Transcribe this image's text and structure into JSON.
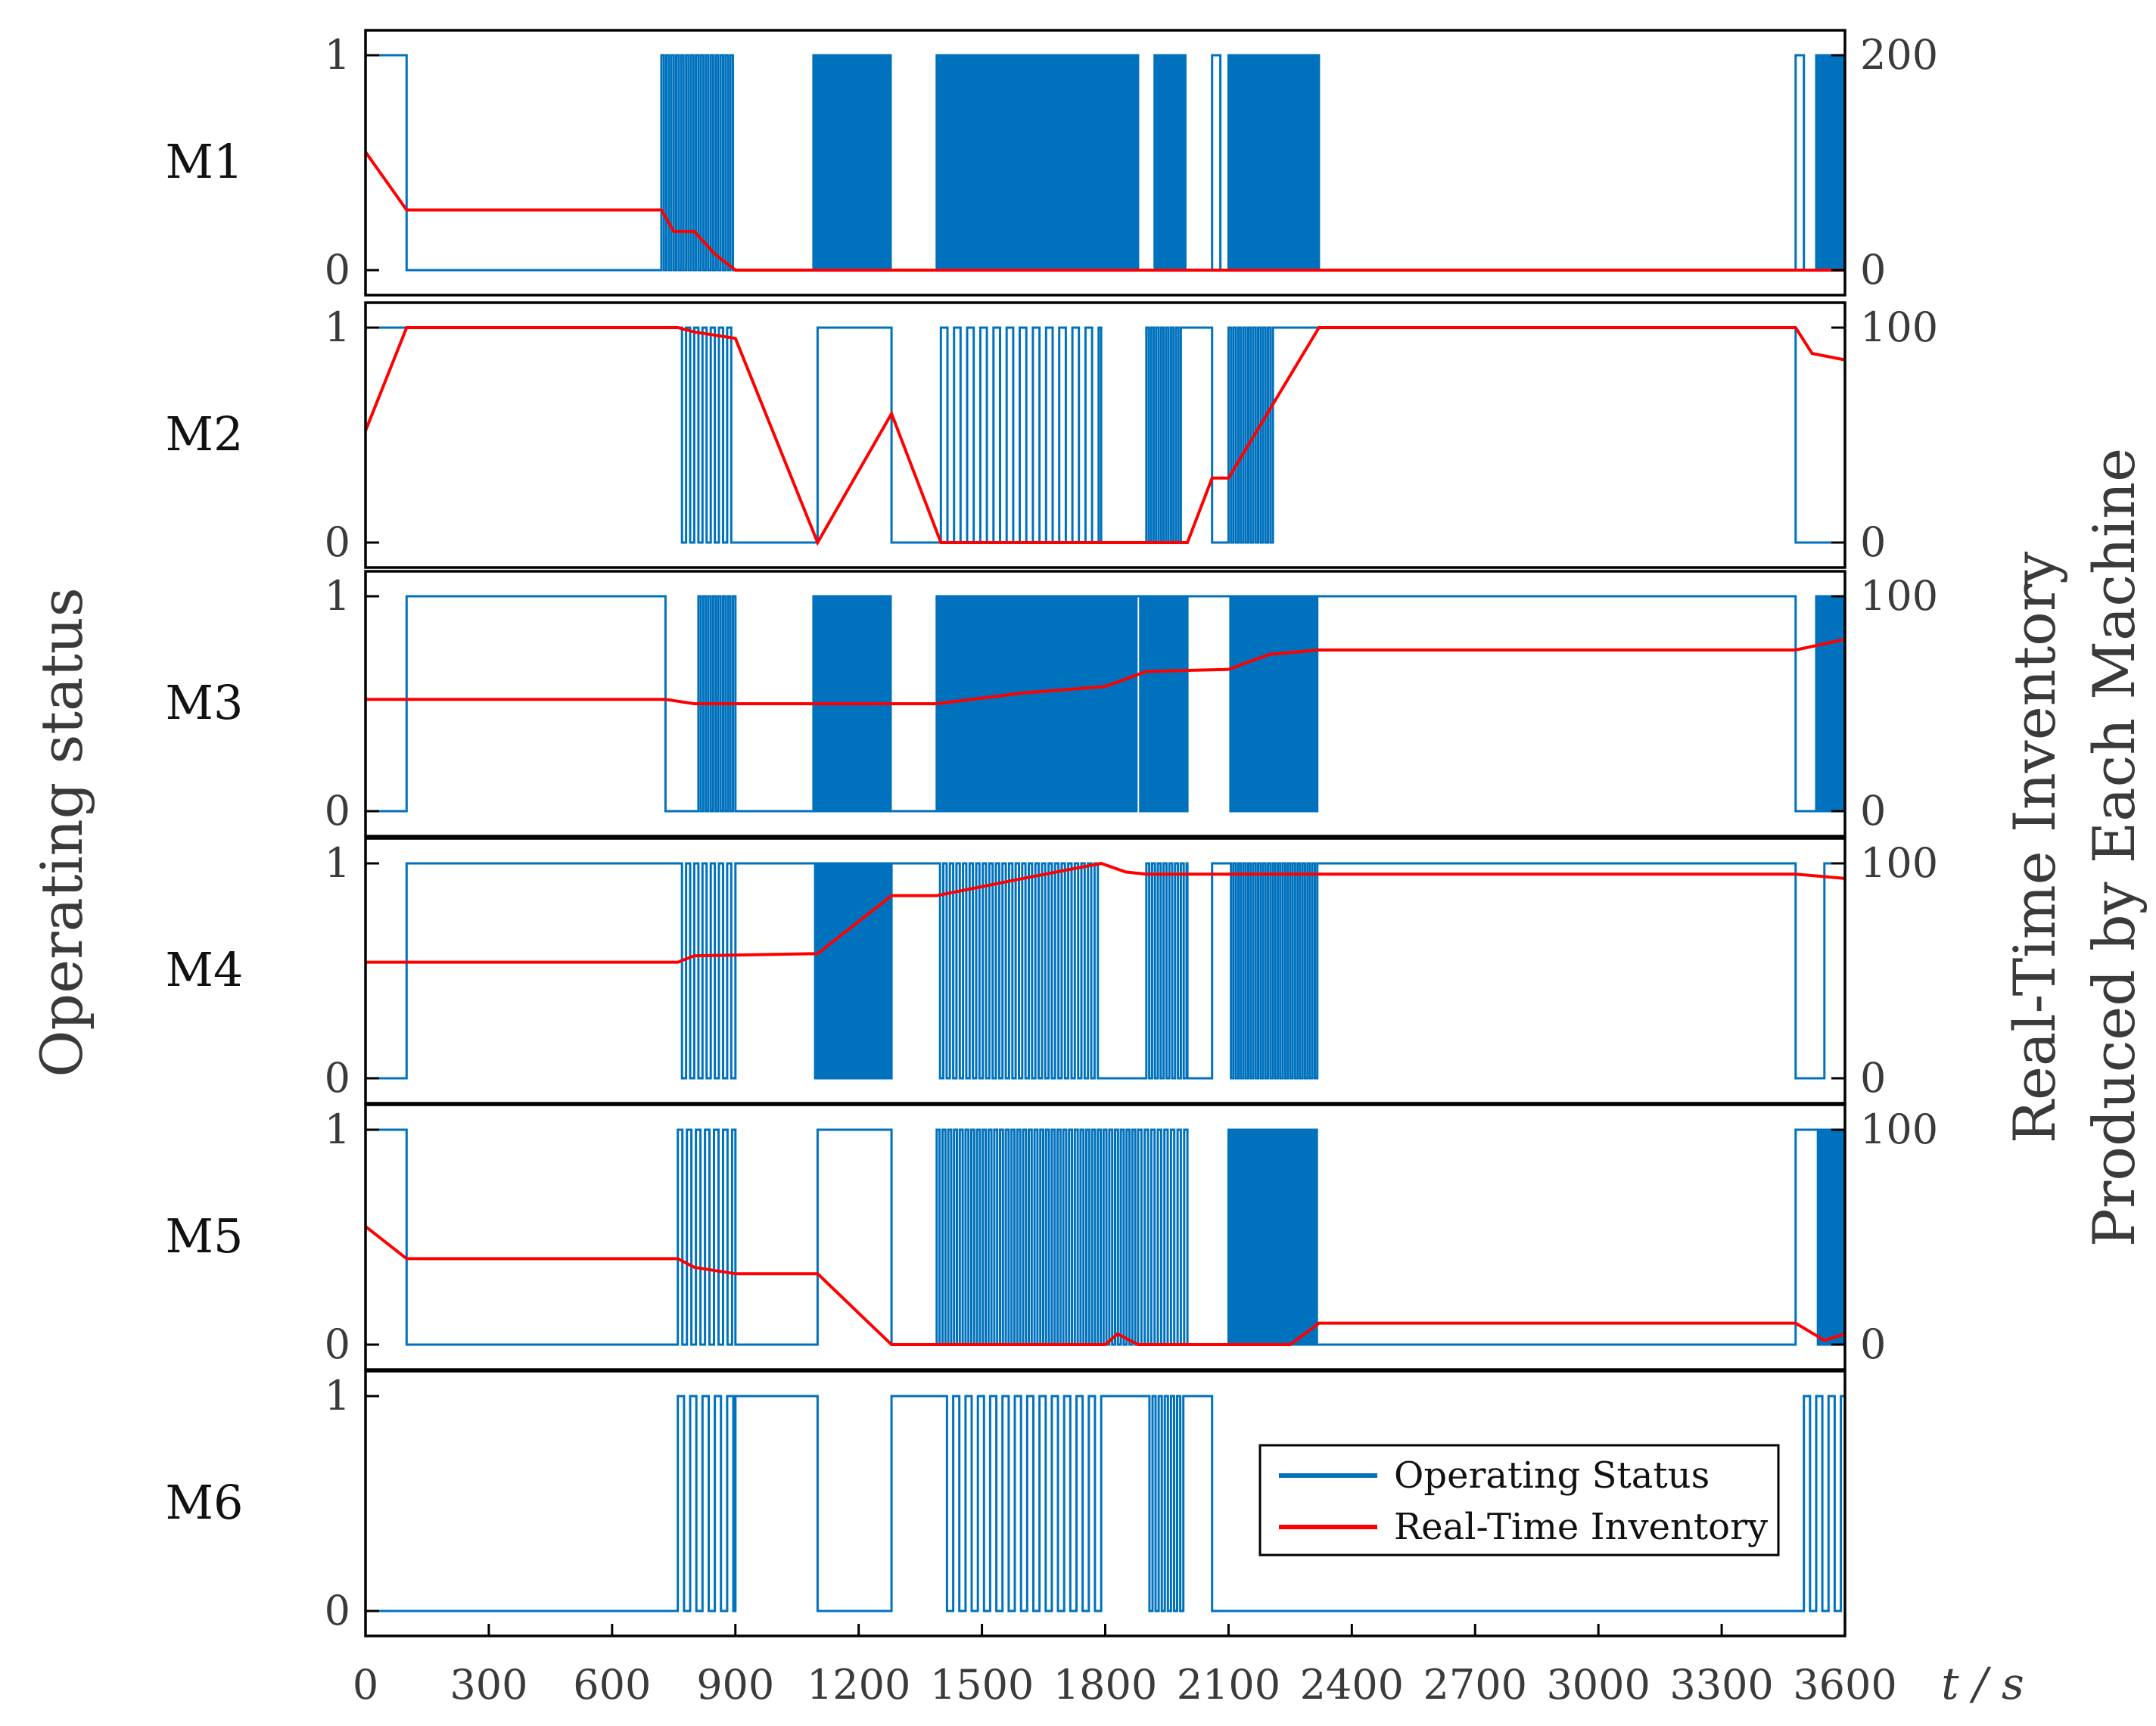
{
  "chart_data": {
    "type": "line",
    "x_unit_label": "t / s",
    "y_left_label": "Operating status",
    "y_right_label_line1": "Real-Time Inventory",
    "y_right_label_line2": "Produced by Each Machine",
    "xlim": [
      0,
      3600
    ],
    "x_ticks": [
      0,
      300,
      600,
      900,
      1200,
      1500,
      1800,
      2100,
      2400,
      2700,
      3000,
      3300,
      3600
    ],
    "x_tick_labels": [
      "0",
      "300",
      "600",
      "900",
      "1200",
      "1500",
      "1800",
      "2100",
      "2400",
      "2700",
      "3000",
      "3300",
      "3600"
    ],
    "status_y_ticks": [
      "0",
      "1"
    ],
    "colors": {
      "status": "#0072BD",
      "inventory": "#FF0000"
    },
    "legend": [
      "Operating Status",
      "Real-Time Inventory"
    ],
    "panels": [
      {
        "machine": "M1",
        "inventory_ylim": [
          0,
          200
        ],
        "inventory_tick_labels": [
          "0",
          "200"
        ],
        "status_segments": [
          {
            "start": 0,
            "end": 100,
            "state": "on"
          },
          {
            "start": 100,
            "end": 720,
            "state": "off"
          },
          {
            "start": 720,
            "end": 900,
            "state": "dense",
            "period": 12
          },
          {
            "start": 900,
            "end": 1090,
            "state": "off"
          },
          {
            "start": 1090,
            "end": 1280,
            "state": "dense",
            "period": 8
          },
          {
            "start": 1280,
            "end": 1390,
            "state": "off"
          },
          {
            "start": 1390,
            "end": 1880,
            "state": "dense",
            "period": 9
          },
          {
            "start": 1880,
            "end": 1920,
            "state": "off"
          },
          {
            "start": 1920,
            "end": 2000,
            "state": "dense",
            "period": 10
          },
          {
            "start": 2000,
            "end": 2060,
            "state": "off"
          },
          {
            "start": 2060,
            "end": 2080,
            "state": "on"
          },
          {
            "start": 2080,
            "end": 2100,
            "state": "off"
          },
          {
            "start": 2100,
            "end": 2320,
            "state": "dense",
            "period": 9
          },
          {
            "start": 2320,
            "end": 3480,
            "state": "off"
          },
          {
            "start": 3480,
            "end": 3500,
            "state": "on"
          },
          {
            "start": 3500,
            "end": 3530,
            "state": "off"
          },
          {
            "start": 3530,
            "end": 3600,
            "state": "dense",
            "period": 8
          }
        ],
        "inventory": [
          [
            0,
            110
          ],
          [
            100,
            56
          ],
          [
            720,
            56
          ],
          [
            750,
            36
          ],
          [
            800,
            36
          ],
          [
            850,
            15
          ],
          [
            900,
            0
          ],
          [
            3600,
            0
          ]
        ]
      },
      {
        "machine": "M2",
        "inventory_ylim": [
          0,
          100
        ],
        "inventory_tick_labels": [
          "0",
          "100"
        ],
        "status_segments": [
          {
            "start": 0,
            "end": 760,
            "state": "on"
          },
          {
            "start": 760,
            "end": 890,
            "state": "dense",
            "period": 20
          },
          {
            "start": 890,
            "end": 1100,
            "state": "off"
          },
          {
            "start": 1100,
            "end": 1280,
            "state": "on"
          },
          {
            "start": 1280,
            "end": 1400,
            "state": "off"
          },
          {
            "start": 1400,
            "end": 1790,
            "state": "dense",
            "period": 32
          },
          {
            "start": 1790,
            "end": 1900,
            "state": "off"
          },
          {
            "start": 1900,
            "end": 1990,
            "state": "dense",
            "period": 12
          },
          {
            "start": 1990,
            "end": 2060,
            "state": "on"
          },
          {
            "start": 2060,
            "end": 2100,
            "state": "off"
          },
          {
            "start": 2100,
            "end": 2210,
            "state": "dense",
            "period": 12
          },
          {
            "start": 2210,
            "end": 2320,
            "state": "on"
          },
          {
            "start": 2320,
            "end": 3480,
            "state": "on"
          },
          {
            "start": 3480,
            "end": 3600,
            "state": "off"
          }
        ],
        "inventory": [
          [
            0,
            52
          ],
          [
            100,
            100
          ],
          [
            760,
            100
          ],
          [
            800,
            98
          ],
          [
            900,
            95
          ],
          [
            1100,
            0
          ],
          [
            1280,
            60
          ],
          [
            1400,
            0
          ],
          [
            1800,
            0
          ],
          [
            2000,
            0
          ],
          [
            2060,
            30
          ],
          [
            2100,
            30
          ],
          [
            2320,
            100
          ],
          [
            3480,
            100
          ],
          [
            3520,
            88
          ],
          [
            3600,
            85
          ]
        ]
      },
      {
        "machine": "M3",
        "inventory_ylim": [
          0,
          100
        ],
        "inventory_tick_labels": [
          "0",
          "100"
        ],
        "status_segments": [
          {
            "start": 0,
            "end": 100,
            "state": "off"
          },
          {
            "start": 100,
            "end": 730,
            "state": "on"
          },
          {
            "start": 730,
            "end": 810,
            "state": "off"
          },
          {
            "start": 810,
            "end": 900,
            "state": "dense",
            "period": 12
          },
          {
            "start": 900,
            "end": 1090,
            "state": "off"
          },
          {
            "start": 1090,
            "end": 1280,
            "state": "dense",
            "period": 8
          },
          {
            "start": 1280,
            "end": 1390,
            "state": "off"
          },
          {
            "start": 1390,
            "end": 1880,
            "state": "dense",
            "period": 9
          },
          {
            "start": 1880,
            "end": 2000,
            "state": "dense",
            "period": 10
          },
          {
            "start": 2000,
            "end": 2100,
            "state": "on"
          },
          {
            "start": 2100,
            "end": 2320,
            "state": "dense",
            "period": 9
          },
          {
            "start": 2320,
            "end": 3480,
            "state": "on"
          },
          {
            "start": 3480,
            "end": 3530,
            "state": "off"
          },
          {
            "start": 3530,
            "end": 3600,
            "state": "dense",
            "period": 8
          }
        ],
        "inventory": [
          [
            0,
            52
          ],
          [
            730,
            52
          ],
          [
            800,
            50
          ],
          [
            1390,
            50
          ],
          [
            1600,
            55
          ],
          [
            1800,
            58
          ],
          [
            1900,
            65
          ],
          [
            2100,
            66
          ],
          [
            2200,
            73
          ],
          [
            2320,
            75
          ],
          [
            3480,
            75
          ],
          [
            3600,
            80
          ]
        ]
      },
      {
        "machine": "M4",
        "inventory_ylim": [
          0,
          100
        ],
        "inventory_tick_labels": [
          "0",
          "100"
        ],
        "status_segments": [
          {
            "start": 0,
            "end": 100,
            "state": "off"
          },
          {
            "start": 100,
            "end": 760,
            "state": "on"
          },
          {
            "start": 760,
            "end": 900,
            "state": "dense",
            "period": 20
          },
          {
            "start": 900,
            "end": 1090,
            "state": "on"
          },
          {
            "start": 1090,
            "end": 1280,
            "state": "dense",
            "period": 8
          },
          {
            "start": 1280,
            "end": 1390,
            "state": "on"
          },
          {
            "start": 1390,
            "end": 1790,
            "state": "dense",
            "period": 16
          },
          {
            "start": 1790,
            "end": 1900,
            "state": "off"
          },
          {
            "start": 1900,
            "end": 2000,
            "state": "dense",
            "period": 14
          },
          {
            "start": 2000,
            "end": 2060,
            "state": "off"
          },
          {
            "start": 2060,
            "end": 2100,
            "state": "on"
          },
          {
            "start": 2100,
            "end": 2320,
            "state": "dense",
            "period": 12
          },
          {
            "start": 2320,
            "end": 3480,
            "state": "on"
          },
          {
            "start": 3480,
            "end": 3550,
            "state": "off"
          },
          {
            "start": 3550,
            "end": 3600,
            "state": "on"
          }
        ],
        "inventory": [
          [
            0,
            54
          ],
          [
            760,
            54
          ],
          [
            800,
            57
          ],
          [
            1100,
            58
          ],
          [
            1280,
            85
          ],
          [
            1390,
            85
          ],
          [
            1600,
            93
          ],
          [
            1790,
            100
          ],
          [
            1850,
            96
          ],
          [
            1900,
            95
          ],
          [
            2320,
            95
          ],
          [
            3480,
            95
          ],
          [
            3600,
            93
          ]
        ]
      },
      {
        "machine": "M5",
        "inventory_ylim": [
          0,
          100
        ],
        "inventory_tick_labels": [
          "0",
          "100"
        ],
        "status_segments": [
          {
            "start": 0,
            "end": 100,
            "state": "on"
          },
          {
            "start": 100,
            "end": 760,
            "state": "off"
          },
          {
            "start": 760,
            "end": 900,
            "state": "dense",
            "period": 22
          },
          {
            "start": 900,
            "end": 1100,
            "state": "off"
          },
          {
            "start": 1100,
            "end": 1280,
            "state": "on"
          },
          {
            "start": 1280,
            "end": 1390,
            "state": "off"
          },
          {
            "start": 1390,
            "end": 1880,
            "state": "dense",
            "period": 14
          },
          {
            "start": 1880,
            "end": 2000,
            "state": "dense",
            "period": 16
          },
          {
            "start": 2000,
            "end": 2100,
            "state": "off"
          },
          {
            "start": 2100,
            "end": 2320,
            "state": "dense",
            "period": 10
          },
          {
            "start": 2320,
            "end": 3480,
            "state": "off"
          },
          {
            "start": 3480,
            "end": 3530,
            "state": "on"
          },
          {
            "start": 3530,
            "end": 3600,
            "state": "dense",
            "period": 8
          }
        ],
        "inventory": [
          [
            0,
            55
          ],
          [
            100,
            40
          ],
          [
            760,
            40
          ],
          [
            800,
            36
          ],
          [
            900,
            33
          ],
          [
            1100,
            33
          ],
          [
            1280,
            0
          ],
          [
            1800,
            0
          ],
          [
            1830,
            5
          ],
          [
            1880,
            0
          ],
          [
            2250,
            0
          ],
          [
            2320,
            10
          ],
          [
            3480,
            10
          ],
          [
            3550,
            2
          ],
          [
            3600,
            5
          ]
        ]
      },
      {
        "machine": "M6",
        "inventory_ylim": null,
        "inventory_tick_labels": [],
        "status_segments": [
          {
            "start": 0,
            "end": 760,
            "state": "off"
          },
          {
            "start": 760,
            "end": 900,
            "state": "dense",
            "period": 30
          },
          {
            "start": 900,
            "end": 1100,
            "state": "on"
          },
          {
            "start": 1100,
            "end": 1280,
            "state": "off"
          },
          {
            "start": 1280,
            "end": 1400,
            "state": "on"
          },
          {
            "start": 1400,
            "end": 1790,
            "state": "dense",
            "period": 30
          },
          {
            "start": 1790,
            "end": 1900,
            "state": "on"
          },
          {
            "start": 1900,
            "end": 1990,
            "state": "dense",
            "period": 15
          },
          {
            "start": 1990,
            "end": 2060,
            "state": "on"
          },
          {
            "start": 2060,
            "end": 3500,
            "state": "off"
          },
          {
            "start": 3500,
            "end": 3600,
            "state": "dense",
            "period": 30
          }
        ],
        "inventory": []
      }
    ]
  }
}
